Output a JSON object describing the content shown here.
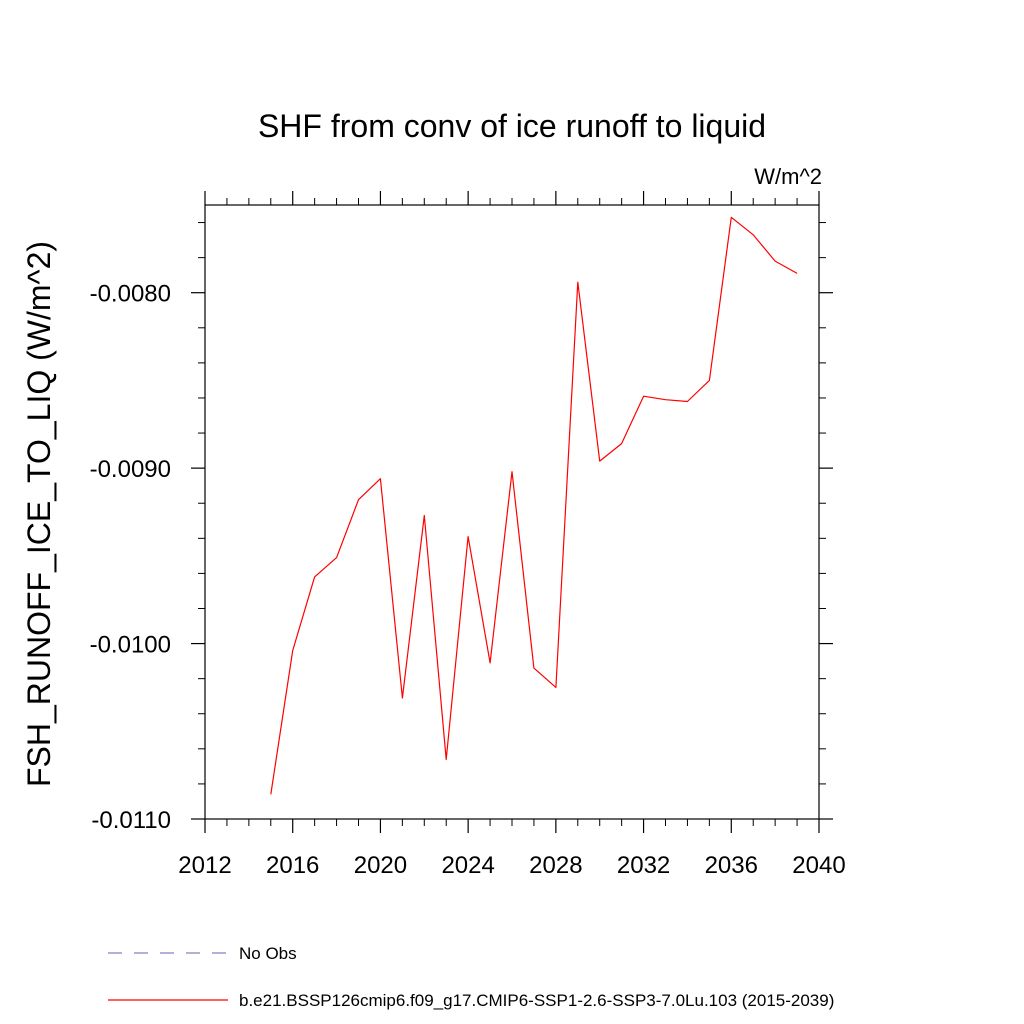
{
  "chart_data": {
    "type": "line",
    "title": "SHF from conv of ice runoff to liquid",
    "units": "W/m^2",
    "xlabel": "",
    "ylabel": "FSH_RUNOFF_ICE_TO_LIQ  (W/m^2)",
    "xlim": [
      2012,
      2040
    ],
    "ylim": [
      -0.011,
      -0.0075
    ],
    "x_ticks": [
      2012,
      2016,
      2020,
      2024,
      2028,
      2032,
      2036,
      2040
    ],
    "x_tick_labels": [
      "2012",
      "2016",
      "2020",
      "2024",
      "2028",
      "2032",
      "2036",
      "2040"
    ],
    "y_ticks": [
      -0.011,
      -0.01,
      -0.009,
      -0.008
    ],
    "y_tick_labels": [
      "-0.0110",
      "-0.0100",
      "-0.0090",
      "-0.0080"
    ],
    "grid": false,
    "legend_position": "bottom",
    "series": [
      {
        "name": "b.e21.BSSP126cmip6.f09_g17.CMIP6-SSP1-2.6-SSP3-7.0Lu.103 (2015-2039)",
        "color": "#ff0000",
        "style": "solid",
        "x": [
          2015,
          2016,
          2017,
          2018,
          2019,
          2020,
          2021,
          2022,
          2023,
          2024,
          2025,
          2026,
          2027,
          2028,
          2029,
          2030,
          2031,
          2032,
          2033,
          2034,
          2035,
          2036,
          2037,
          2038,
          2039
        ],
        "values": [
          -0.01086,
          -0.01004,
          -0.00962,
          -0.00951,
          -0.00918,
          -0.00906,
          -0.01031,
          -0.00927,
          -0.01066,
          -0.00939,
          -0.01011,
          -0.00902,
          -0.01014,
          -0.01025,
          -0.00794,
          -0.00896,
          -0.00886,
          -0.00859,
          -0.00861,
          -0.00862,
          -0.0085,
          -0.00757,
          -0.00767,
          -0.00782,
          -0.00789
        ]
      },
      {
        "name": "No Obs",
        "color": "#8080c0",
        "style": "dashed",
        "x": [],
        "values": []
      }
    ]
  }
}
